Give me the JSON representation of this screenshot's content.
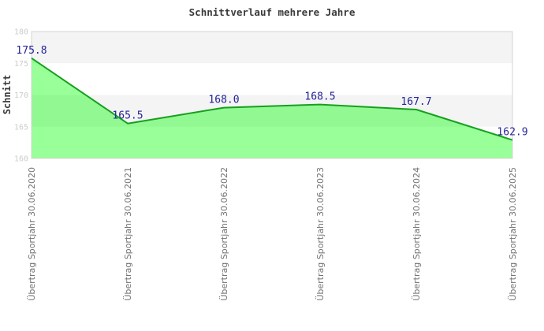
{
  "chart_data": {
    "type": "area",
    "title": "Schnittverlauf mehrere Jahre",
    "ylabel": "Schnitt",
    "xlabel": "",
    "categories": [
      "Übertrag Sportjahr 30.06.2020",
      "Übertrag Sportjahr 30.06.2021",
      "Übertrag Sportjahr 30.06.2022",
      "Übertrag Sportjahr 30.06.2023",
      "Übertrag Sportjahr 30.06.2024",
      "Übertrag Sportjahr 30.06.2025"
    ],
    "values": [
      175.8,
      165.5,
      168.0,
      168.5,
      167.7,
      162.9
    ],
    "value_labels": [
      "175.8",
      "165.5",
      "168.0",
      "168.5",
      "167.7",
      "162.9"
    ],
    "ylim": [
      160,
      180
    ],
    "ytick_step": 5,
    "yticks": [
      180,
      175,
      170,
      165,
      160
    ],
    "grid": "alternating-horizontal-bands",
    "legend_position": "none",
    "colors": {
      "line": "#16a01e",
      "fill": "#00ff00",
      "fill_opacity": "0.4",
      "band": "#f4f4f4",
      "band_alt": "#ffffff",
      "plot_border": "#d4d4d4",
      "value_label": "#222299",
      "ytick_label": "#cccccc",
      "xtick_label": "#737373",
      "title": "#3a3a3a",
      "background": "#ffffff"
    }
  }
}
